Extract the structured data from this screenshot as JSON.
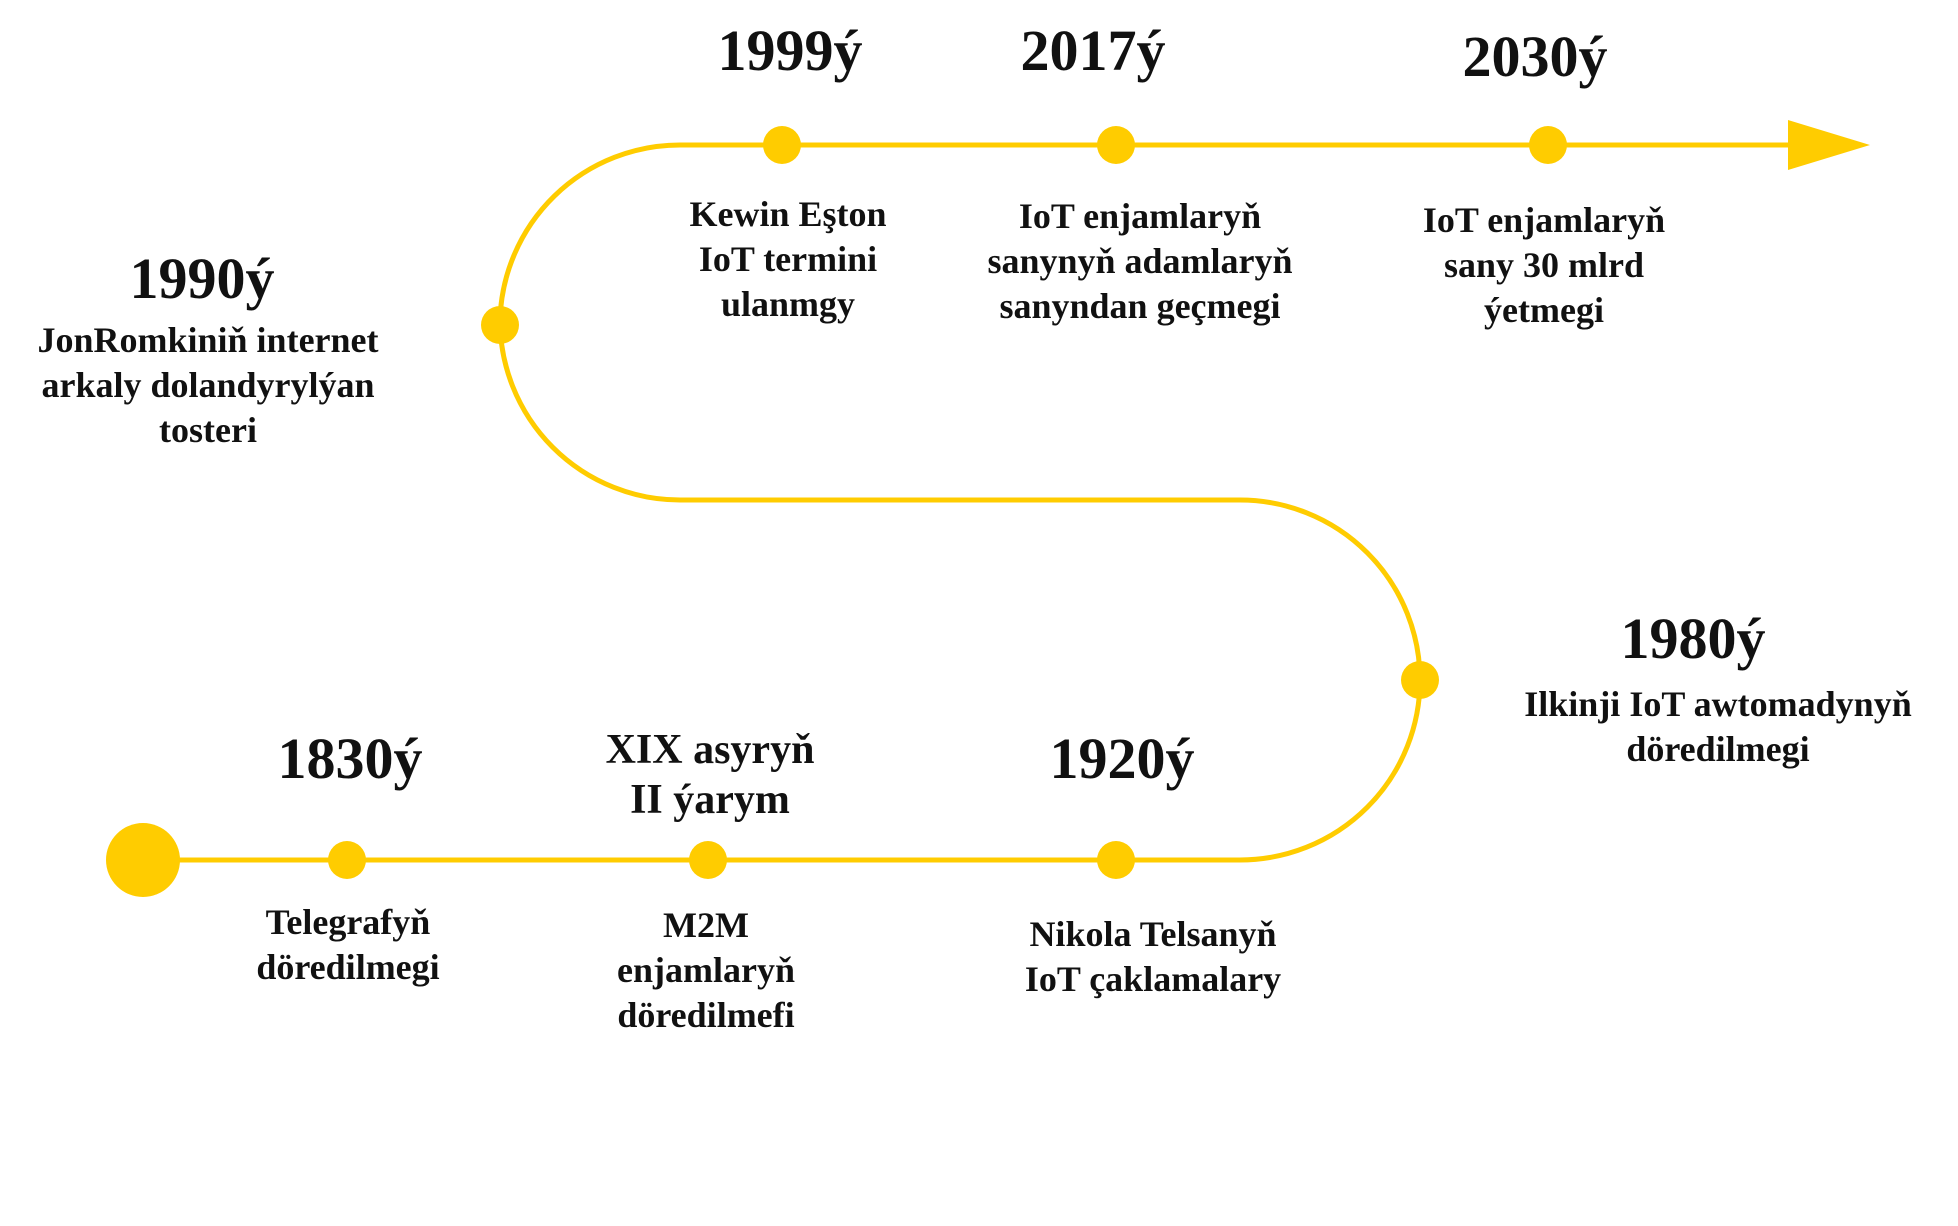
{
  "colors": {
    "accent": "#FFCC00",
    "text": "#111111",
    "background": "#FFFFFF"
  },
  "events": [
    {
      "year": "1830ý",
      "lines": [
        "Telegrafyň",
        "döredilmegi"
      ]
    },
    {
      "year": "XIX asyryň\nII ýarym",
      "lines": [
        "M2M",
        "enjamlaryň",
        "döredilmefi"
      ]
    },
    {
      "year": "1920ý",
      "lines": [
        "Nikola Telsanyň",
        "IoT çaklamalary"
      ]
    },
    {
      "year": "1980ý",
      "lines": [
        "Ilkinji IoT awtomadynyň",
        "döredilmegi"
      ]
    },
    {
      "year": "1990ý",
      "lines": [
        "JonRomkiniň internet",
        "arkaly dolandyrylýan",
        "tosteri"
      ]
    },
    {
      "year": "1999ý",
      "lines": [
        "Kewin Eşton",
        "IoT termini",
        "ulanmgy"
      ]
    },
    {
      "year": "2017ý",
      "lines": [
        "IoT enjamlaryň",
        "sanynyň adamlaryň",
        "sanyndan geçmegi"
      ]
    },
    {
      "year": "2030ý",
      "lines": [
        "IoT enjamlaryň",
        "sany 30 mlrd",
        "ýetmegi"
      ]
    }
  ]
}
